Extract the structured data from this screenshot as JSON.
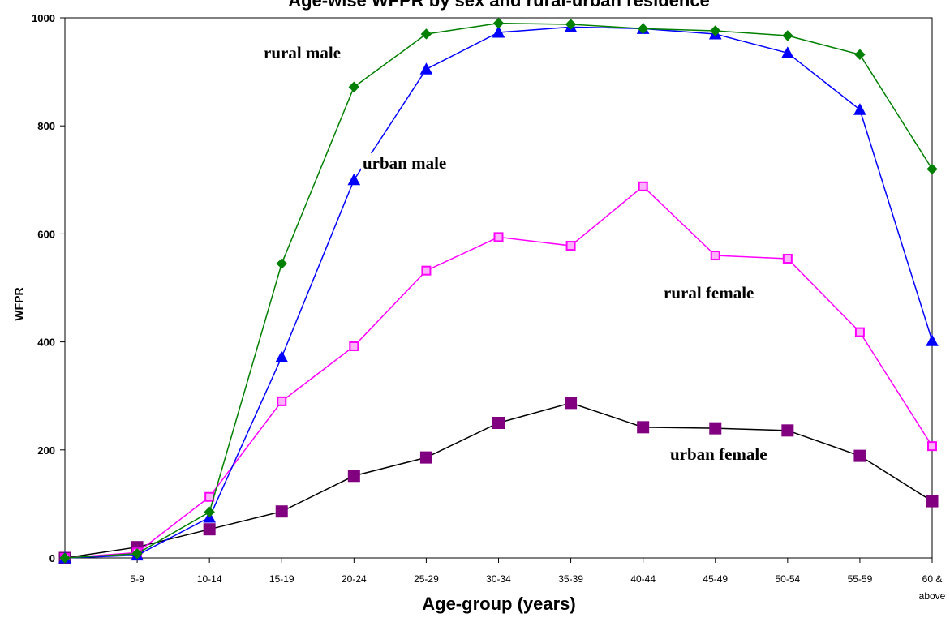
{
  "chart_data": {
    "type": "line",
    "title": "Age-wise WFPR by sex and rural-urban residence",
    "xlabel": "Age-group (years)",
    "ylabel": "WFPR",
    "ylim": [
      0,
      1000
    ],
    "yticks": [
      0,
      200,
      400,
      600,
      800,
      1000
    ],
    "categories": [
      "",
      "5-9",
      "10-14",
      "15-19",
      "20-24",
      "25-29",
      "30-34",
      "35-39",
      "40-44",
      "45-49",
      "50-54",
      "55-59",
      "60 & above"
    ],
    "series": [
      {
        "name": "rural male",
        "color": "#008000",
        "marker": "diamond",
        "values": [
          0,
          8,
          85,
          545,
          872,
          970,
          990,
          988,
          980,
          976,
          967,
          932,
          720
        ]
      },
      {
        "name": "urban male",
        "color": "#0000ff",
        "marker": "triangle",
        "values": [
          0,
          5,
          75,
          372,
          700,
          905,
          973,
          983,
          980,
          970,
          935,
          830,
          402
        ]
      },
      {
        "name": "rural female",
        "color": "#ff00ff",
        "marker": "square-open",
        "values": [
          0,
          10,
          113,
          290,
          392,
          532,
          594,
          578,
          688,
          560,
          554,
          418,
          207
        ]
      },
      {
        "name": "urban female",
        "color": "#800080",
        "line_color": "#000000",
        "marker": "square",
        "values": [
          0,
          20,
          53,
          86,
          152,
          186,
          250,
          287,
          242,
          240,
          236,
          189,
          105
        ]
      }
    ],
    "annotations": [
      "rural male",
      "urban male",
      "rural female",
      "urban female"
    ],
    "grid": false,
    "legend": "inline labels"
  }
}
